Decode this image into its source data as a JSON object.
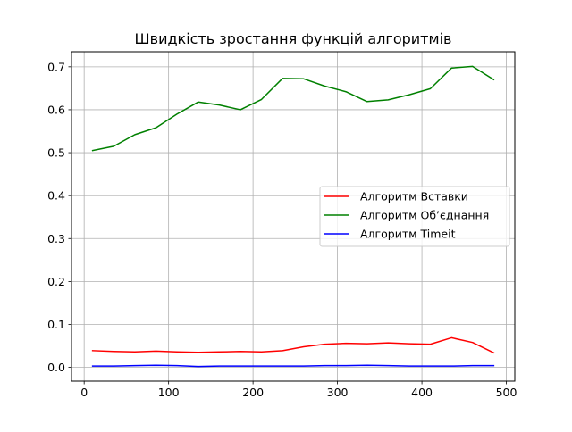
{
  "chart_data": {
    "type": "line",
    "title": "Швидкість зростання функцій алгоритмів",
    "xlabel": "",
    "ylabel": "",
    "xlim": [
      -15,
      510
    ],
    "ylim": [
      -0.032,
      0.735
    ],
    "xticks": [
      0,
      100,
      200,
      300,
      400,
      500
    ],
    "xtick_labels": [
      "0",
      "100",
      "200",
      "300",
      "400",
      "500"
    ],
    "yticks": [
      0.0,
      0.1,
      0.2,
      0.3,
      0.4,
      0.5,
      0.6,
      0.7
    ],
    "ytick_labels": [
      "0.0",
      "0.1",
      "0.2",
      "0.3",
      "0.4",
      "0.5",
      "0.6",
      "0.7"
    ],
    "grid": true,
    "legend_position": "center-right",
    "x": [
      10,
      35,
      60,
      85,
      110,
      135,
      160,
      185,
      210,
      235,
      260,
      285,
      310,
      335,
      360,
      385,
      410,
      435,
      460,
      485
    ],
    "series": [
      {
        "name": "Алгоритм Вставки",
        "color": "#ff0000",
        "values": [
          0.039,
          0.037,
          0.036,
          0.038,
          0.036,
          0.035,
          0.036,
          0.037,
          0.036,
          0.039,
          0.048,
          0.054,
          0.056,
          0.055,
          0.057,
          0.055,
          0.054,
          0.069,
          0.058,
          0.034
        ]
      },
      {
        "name": "Алгоритм Об’єднання",
        "color": "#008000",
        "values": [
          0.505,
          0.515,
          0.542,
          0.558,
          0.59,
          0.618,
          0.611,
          0.6,
          0.624,
          0.673,
          0.672,
          0.655,
          0.642,
          0.619,
          0.623,
          0.635,
          0.649,
          0.697,
          0.701,
          0.67
        ]
      },
      {
        "name": "Алгоритм Timeit",
        "color": "#0000ff",
        "values": [
          0.003,
          0.003,
          0.004,
          0.005,
          0.004,
          0.002,
          0.003,
          0.003,
          0.003,
          0.003,
          0.003,
          0.004,
          0.004,
          0.005,
          0.004,
          0.003,
          0.003,
          0.003,
          0.004,
          0.004
        ]
      }
    ]
  }
}
